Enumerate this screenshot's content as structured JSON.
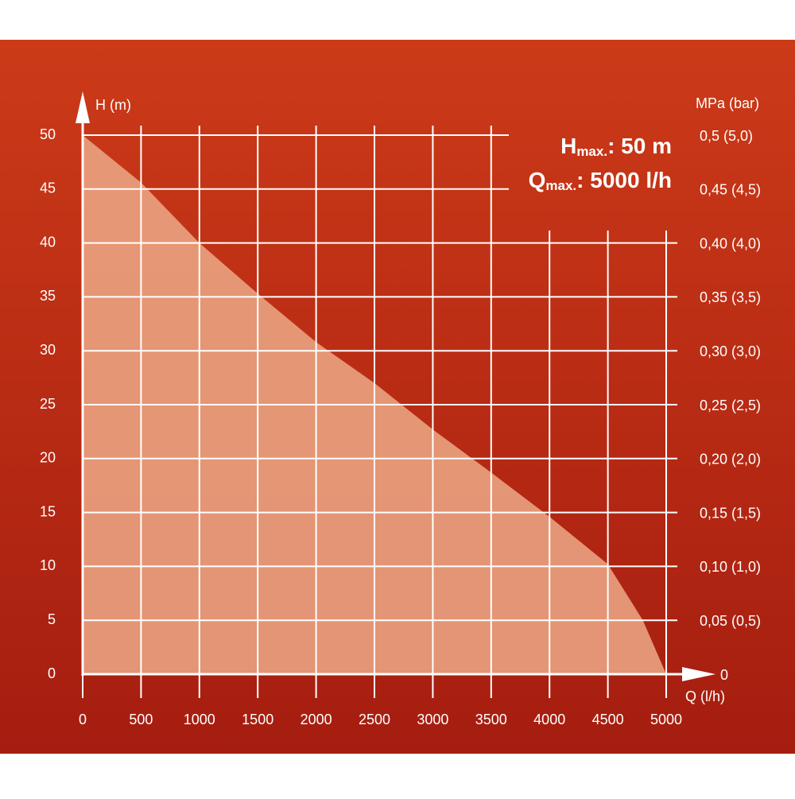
{
  "chart_data": {
    "type": "area",
    "x": [
      0,
      500,
      1000,
      1500,
      2000,
      2500,
      3000,
      3500,
      4000,
      4500,
      4800,
      5000
    ],
    "series": [
      {
        "color": "#eba583",
        "values": [
          50,
          45.6,
          40,
          35.3,
          30.8,
          27,
          22.7,
          18.7,
          14.6,
          10.2,
          5,
          0
        ]
      }
    ],
    "xlabel": "Q (l/h)",
    "ylabel": "H (m)",
    "y2label": "MPa (bar)",
    "xlim": [
      0,
      5000
    ],
    "xticks": [
      0,
      500,
      1000,
      1500,
      2000,
      2500,
      3000,
      3500,
      4000,
      4500,
      5000
    ],
    "ylim": [
      0,
      50
    ],
    "yticks": [
      0,
      5,
      10,
      15,
      20,
      25,
      30,
      35,
      40,
      45,
      50
    ],
    "y2lim": [
      0,
      0.5
    ],
    "y2ticks": [
      {
        "value": 0,
        "label": "0"
      },
      {
        "value": 0.05,
        "label": "0,05 (0,5)"
      },
      {
        "value": 0.1,
        "label": "0,10 (1,0)"
      },
      {
        "value": 0.15,
        "label": "0,15 (1,5)"
      },
      {
        "value": 0.2,
        "label": "0,20 (2,0)"
      },
      {
        "value": 0.25,
        "label": "0,25 (2,5)"
      },
      {
        "value": 0.3,
        "label": "0,30 (3,0)"
      },
      {
        "value": 0.35,
        "label": "0,35 (3,5)"
      },
      {
        "value": 0.4,
        "label": "0,40 (4,0)"
      },
      {
        "value": 0.45,
        "label": "0,45 (4,5)"
      },
      {
        "value": 0.5,
        "label": "0,5 (5,0)"
      }
    ],
    "grid": true,
    "annotations": [
      {
        "symbol": "H",
        "subscript": "max.",
        "text": ": 50 m"
      },
      {
        "symbol": "Q",
        "subscript": "max.",
        "text": ": 5000 l/h"
      }
    ]
  }
}
